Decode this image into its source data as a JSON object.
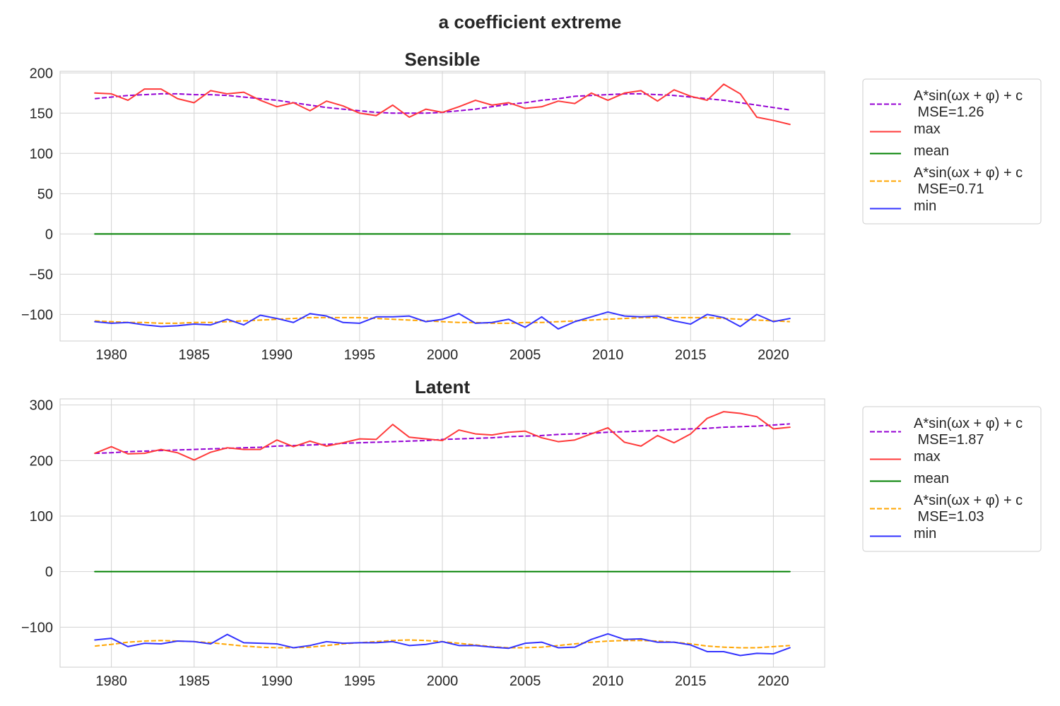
{
  "figure_title": "a coefficient extreme",
  "chart_data": [
    {
      "type": "line",
      "title": "Sensible",
      "xlabel": "",
      "ylabel": "",
      "xlim": [
        1976.9,
        2023.1
      ],
      "ylim": [
        -133,
        202
      ],
      "x_ticks": [
        1980,
        1985,
        1990,
        1995,
        2000,
        2005,
        2010,
        2015,
        2020
      ],
      "y_ticks": [
        -100,
        -50,
        0,
        50,
        100,
        150,
        200
      ],
      "grid": true,
      "legend_position": "outside upper-right",
      "x": [
        1979,
        1980,
        1981,
        1982,
        1983,
        1984,
        1985,
        1986,
        1987,
        1988,
        1989,
        1990,
        1991,
        1992,
        1993,
        1994,
        1995,
        1996,
        1997,
        1998,
        1999,
        2000,
        2001,
        2002,
        2003,
        2004,
        2005,
        2006,
        2007,
        2008,
        2009,
        2010,
        2011,
        2012,
        2013,
        2014,
        2015,
        2016,
        2017,
        2018,
        2019,
        2020,
        2021
      ],
      "series": [
        {
          "name": "A*sin(ωx + φ) + c\n MSE=1.26",
          "style": "dashed",
          "color": "#9400d3",
          "values": [
            168,
            170,
            172,
            173,
            174,
            174,
            173,
            173,
            172,
            170,
            168,
            166,
            163,
            160,
            157,
            155,
            153,
            151,
            150,
            150,
            150,
            151,
            153,
            155,
            158,
            161,
            163,
            166,
            168,
            171,
            172,
            173,
            174,
            174,
            173,
            172,
            170,
            168,
            166,
            163,
            160,
            157,
            154
          ]
        },
        {
          "name": "max",
          "style": "solid",
          "color": "#ff3a3a",
          "values": [
            175,
            174,
            166,
            180,
            180,
            168,
            163,
            178,
            174,
            176,
            166,
            158,
            163,
            153,
            165,
            159,
            150,
            147,
            160,
            145,
            155,
            151,
            158,
            166,
            160,
            163,
            156,
            158,
            165,
            162,
            175,
            166,
            175,
            178,
            165,
            179,
            171,
            166,
            186,
            174,
            145,
            141,
            136
          ]
        },
        {
          "name": "mean",
          "style": "solid",
          "color": "#008000",
          "values": [
            0,
            0,
            0,
            0,
            0,
            0,
            0,
            0,
            0,
            0,
            0,
            0,
            0,
            0,
            0,
            0,
            0,
            0,
            0,
            0,
            0,
            0,
            0,
            0,
            0,
            0,
            0,
            0,
            0,
            0,
            0,
            0,
            0,
            0,
            0,
            0,
            0,
            0,
            0,
            0,
            0,
            0,
            0
          ]
        },
        {
          "name": "A*sin(ωx + φ) + c\n MSE=0.71",
          "style": "dashed",
          "color": "#ffa500",
          "values": [
            -108,
            -109,
            -110,
            -110,
            -111,
            -111,
            -110,
            -110,
            -109,
            -108,
            -107,
            -106,
            -105,
            -104,
            -104,
            -104,
            -104,
            -105,
            -106,
            -107,
            -108,
            -109,
            -110,
            -110,
            -111,
            -111,
            -110,
            -110,
            -109,
            -108,
            -107,
            -106,
            -105,
            -104,
            -104,
            -104,
            -104,
            -104,
            -105,
            -106,
            -107,
            -108,
            -109
          ]
        },
        {
          "name": "min",
          "style": "solid",
          "color": "#3333ff",
          "values": [
            -109,
            -111,
            -110,
            -113,
            -115,
            -114,
            -112,
            -113,
            -106,
            -113,
            -101,
            -105,
            -110,
            -99,
            -102,
            -110,
            -111,
            -103,
            -103,
            -102,
            -109,
            -106,
            -99,
            -111,
            -110,
            -106,
            -116,
            -103,
            -118,
            -109,
            -103,
            -97,
            -102,
            -103,
            -102,
            -108,
            -112,
            -100,
            -104,
            -115,
            -100,
            -109,
            -105
          ]
        }
      ]
    },
    {
      "type": "line",
      "title": "Latent",
      "xlabel": "",
      "ylabel": "",
      "xlim": [
        1976.9,
        2023.1
      ],
      "ylim": [
        -172,
        311
      ],
      "x_ticks": [
        1980,
        1985,
        1990,
        1995,
        2000,
        2005,
        2010,
        2015,
        2020
      ],
      "y_ticks": [
        -100,
        0,
        100,
        200,
        300
      ],
      "grid": true,
      "legend_position": "outside upper-right",
      "x": [
        1979,
        1980,
        1981,
        1982,
        1983,
        1984,
        1985,
        1986,
        1987,
        1988,
        1989,
        1990,
        1991,
        1992,
        1993,
        1994,
        1995,
        1996,
        1997,
        1998,
        1999,
        2000,
        2001,
        2002,
        2003,
        2004,
        2005,
        2006,
        2007,
        2008,
        2009,
        2010,
        2011,
        2012,
        2013,
        2014,
        2015,
        2016,
        2017,
        2018,
        2019,
        2020,
        2021
      ],
      "series": [
        {
          "name": "A*sin(ωx + φ) + c\n MSE=1.87",
          "style": "dashed",
          "color": "#9400d3",
          "values": [
            213,
            214,
            216,
            217,
            218,
            219,
            220,
            221,
            222,
            223,
            224,
            226,
            227,
            228,
            229,
            231,
            232,
            233,
            234,
            235,
            236,
            238,
            239,
            240,
            241,
            243,
            244,
            245,
            247,
            248,
            249,
            251,
            252,
            253,
            254,
            256,
            257,
            258,
            260,
            261,
            262,
            264,
            266
          ]
        },
        {
          "name": "max",
          "style": "solid",
          "color": "#ff3a3a",
          "values": [
            213,
            225,
            212,
            213,
            220,
            214,
            201,
            215,
            223,
            220,
            220,
            237,
            225,
            235,
            226,
            232,
            239,
            238,
            265,
            242,
            239,
            236,
            255,
            248,
            246,
            251,
            253,
            241,
            234,
            237,
            248,
            259,
            233,
            226,
            245,
            232,
            248,
            276,
            288,
            285,
            279,
            257,
            260
          ]
        },
        {
          "name": "mean",
          "style": "solid",
          "color": "#008000",
          "values": [
            0,
            0,
            0,
            0,
            0,
            0,
            0,
            0,
            0,
            0,
            0,
            0,
            0,
            0,
            0,
            0,
            0,
            0,
            0,
            0,
            0,
            0,
            0,
            0,
            0,
            0,
            0,
            0,
            0,
            0,
            0,
            0,
            0,
            0,
            0,
            0,
            0,
            0,
            0,
            0,
            0,
            0,
            0
          ]
        },
        {
          "name": "A*sin(ωx + φ) + c\n MSE=1.03",
          "style": "dashed",
          "color": "#ffa500",
          "values": [
            -134,
            -131,
            -127,
            -125,
            -124,
            -125,
            -126,
            -128,
            -131,
            -134,
            -136,
            -137,
            -137,
            -136,
            -133,
            -130,
            -128,
            -126,
            -124,
            -123,
            -124,
            -126,
            -129,
            -132,
            -135,
            -137,
            -137,
            -136,
            -133,
            -130,
            -127,
            -125,
            -124,
            -124,
            -125,
            -127,
            -130,
            -134,
            -136,
            -137,
            -137,
            -135,
            -133
          ]
        },
        {
          "name": "min",
          "style": "solid",
          "color": "#3333ff",
          "values": [
            -123,
            -120,
            -135,
            -129,
            -130,
            -125,
            -126,
            -130,
            -113,
            -128,
            -129,
            -130,
            -137,
            -133,
            -126,
            -129,
            -128,
            -128,
            -126,
            -133,
            -131,
            -126,
            -133,
            -133,
            -136,
            -138,
            -129,
            -127,
            -137,
            -136,
            -122,
            -112,
            -122,
            -121,
            -127,
            -127,
            -132,
            -144,
            -144,
            -151,
            -147,
            -148,
            -137
          ]
        }
      ]
    }
  ]
}
